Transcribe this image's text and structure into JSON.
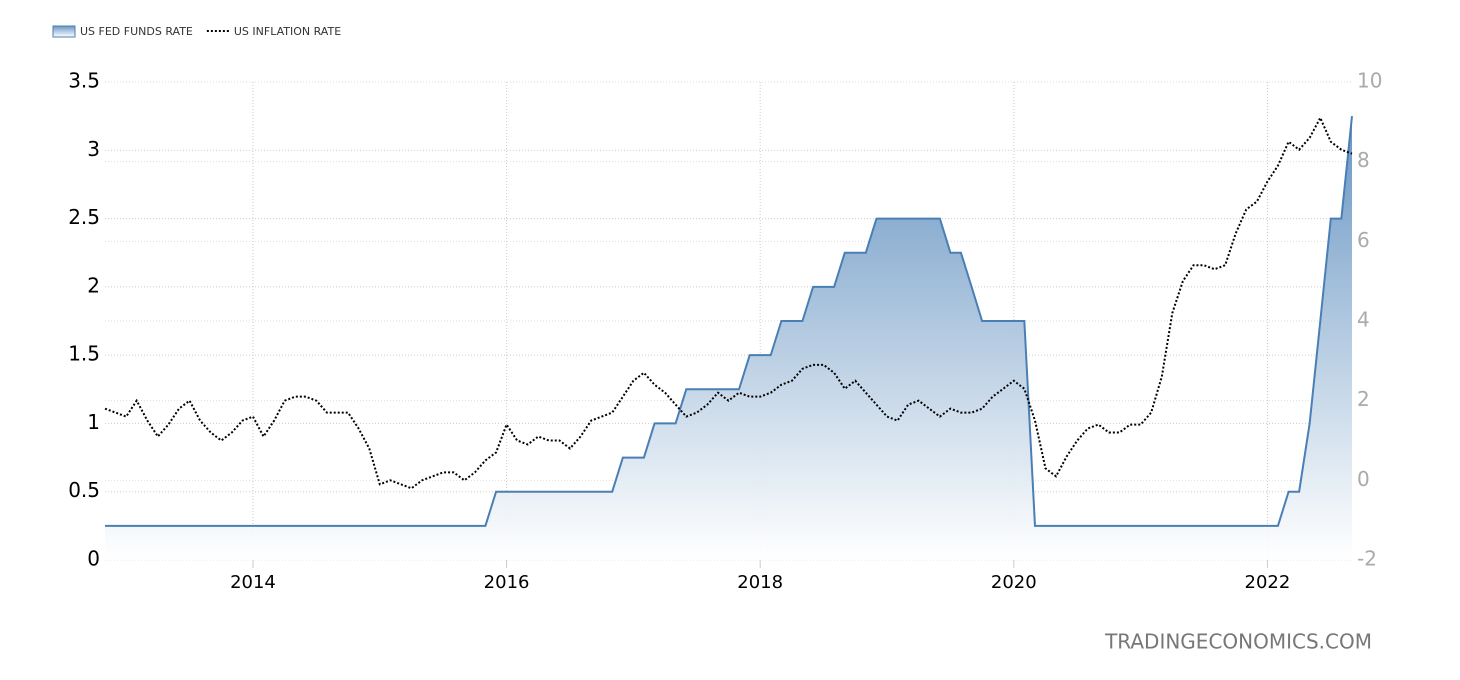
{
  "chart_data": {
    "type": "area-line",
    "watermark": "TRADINGECONOMICS.COM",
    "x": [
      2012.833,
      2012.917,
      2013,
      2013.083,
      2013.167,
      2013.25,
      2013.333,
      2013.417,
      2013.5,
      2013.583,
      2013.667,
      2013.75,
      2013.833,
      2013.917,
      2014,
      2014.083,
      2014.167,
      2014.25,
      2014.333,
      2014.417,
      2014.5,
      2014.583,
      2014.667,
      2014.75,
      2014.833,
      2014.917,
      2015,
      2015.083,
      2015.167,
      2015.25,
      2015.333,
      2015.417,
      2015.5,
      2015.583,
      2015.667,
      2015.75,
      2015.833,
      2015.917,
      2016,
      2016.083,
      2016.167,
      2016.25,
      2016.333,
      2016.417,
      2016.5,
      2016.583,
      2016.667,
      2016.75,
      2016.833,
      2016.917,
      2017,
      2017.083,
      2017.167,
      2017.25,
      2017.333,
      2017.417,
      2017.5,
      2017.583,
      2017.667,
      2017.75,
      2017.833,
      2017.917,
      2018,
      2018.083,
      2018.167,
      2018.25,
      2018.333,
      2018.417,
      2018.5,
      2018.583,
      2018.667,
      2018.75,
      2018.833,
      2018.917,
      2019,
      2019.083,
      2019.167,
      2019.25,
      2019.333,
      2019.417,
      2019.5,
      2019.583,
      2019.667,
      2019.75,
      2019.833,
      2019.917,
      2020,
      2020.083,
      2020.167,
      2020.25,
      2020.333,
      2020.417,
      2020.5,
      2020.583,
      2020.667,
      2020.75,
      2020.833,
      2020.917,
      2021,
      2021.083,
      2021.167,
      2021.25,
      2021.333,
      2021.417,
      2021.5,
      2021.583,
      2021.667,
      2021.75,
      2021.833,
      2021.917,
      2022,
      2022.083,
      2022.167,
      2022.25,
      2022.333,
      2022.417,
      2022.5,
      2022.583,
      2022.667
    ],
    "series": [
      {
        "name": "US FED FUNDS RATE",
        "color": "#4a7fb5",
        "values": [
          0.25,
          0.25,
          0.25,
          0.25,
          0.25,
          0.25,
          0.25,
          0.25,
          0.25,
          0.25,
          0.25,
          0.25,
          0.25,
          0.25,
          0.25,
          0.25,
          0.25,
          0.25,
          0.25,
          0.25,
          0.25,
          0.25,
          0.25,
          0.25,
          0.25,
          0.25,
          0.25,
          0.25,
          0.25,
          0.25,
          0.25,
          0.25,
          0.25,
          0.25,
          0.25,
          0.25,
          0.25,
          0.5,
          0.5,
          0.5,
          0.5,
          0.5,
          0.5,
          0.5,
          0.5,
          0.5,
          0.5,
          0.5,
          0.5,
          0.75,
          0.75,
          0.75,
          1,
          1,
          1,
          1.25,
          1.25,
          1.25,
          1.25,
          1.25,
          1.25,
          1.5,
          1.5,
          1.5,
          1.75,
          1.75,
          1.75,
          2,
          2,
          2,
          2.25,
          2.25,
          2.25,
          2.5,
          2.5,
          2.5,
          2.5,
          2.5,
          2.5,
          2.5,
          2.25,
          2.25,
          2,
          1.75,
          1.75,
          1.75,
          1.75,
          1.75,
          0.25,
          0.25,
          0.25,
          0.25,
          0.25,
          0.25,
          0.25,
          0.25,
          0.25,
          0.25,
          0.25,
          0.25,
          0.25,
          0.25,
          0.25,
          0.25,
          0.25,
          0.25,
          0.25,
          0.25,
          0.25,
          0.25,
          0.25,
          0.25,
          0.5,
          0.5,
          1,
          1.75,
          2.5,
          2.5,
          3.25
        ]
      },
      {
        "name": "US INFLATION RATE",
        "color": "#000000",
        "axis": "y2",
        "values": [
          1.8,
          1.7,
          1.6,
          2.0,
          1.5,
          1.1,
          1.4,
          1.8,
          2.0,
          1.5,
          1.2,
          1.0,
          1.2,
          1.5,
          1.6,
          1.1,
          1.5,
          2.0,
          2.1,
          2.1,
          2.0,
          1.7,
          1.7,
          1.7,
          1.3,
          0.8,
          -0.1,
          0.0,
          -0.1,
          -0.2,
          0.0,
          0.1,
          0.2,
          0.2,
          0.0,
          0.2,
          0.5,
          0.7,
          1.4,
          1.0,
          0.9,
          1.1,
          1.0,
          1.0,
          0.8,
          1.1,
          1.5,
          1.6,
          1.7,
          2.1,
          2.5,
          2.7,
          2.4,
          2.2,
          1.9,
          1.6,
          1.7,
          1.9,
          2.2,
          2.0,
          2.2,
          2.1,
          2.1,
          2.2,
          2.4,
          2.5,
          2.8,
          2.9,
          2.9,
          2.7,
          2.3,
          2.5,
          2.2,
          1.9,
          1.6,
          1.5,
          1.9,
          2.0,
          1.8,
          1.6,
          1.8,
          1.7,
          1.7,
          1.8,
          2.1,
          2.3,
          2.5,
          2.3,
          1.5,
          0.3,
          0.1,
          0.6,
          1.0,
          1.3,
          1.4,
          1.2,
          1.2,
          1.4,
          1.4,
          1.7,
          2.6,
          4.2,
          5.0,
          5.4,
          5.4,
          5.3,
          5.4,
          6.2,
          6.8,
          7.0,
          7.5,
          7.9,
          8.5,
          8.3,
          8.6,
          9.1,
          8.5,
          8.3,
          8.2
        ]
      }
    ],
    "xlim": [
      2012.833,
      2022.667
    ],
    "xticks": [
      2014,
      2016,
      2018,
      2020,
      2022
    ],
    "ylim": [
      0,
      3.5
    ],
    "yticks": [
      0,
      0.5,
      1,
      1.5,
      2,
      2.5,
      3,
      3.5
    ],
    "y2lim": [
      -2,
      10
    ],
    "y2ticks": [
      -2,
      0,
      2,
      4,
      6,
      8,
      10
    ],
    "grid": true,
    "legend": "top-left"
  }
}
